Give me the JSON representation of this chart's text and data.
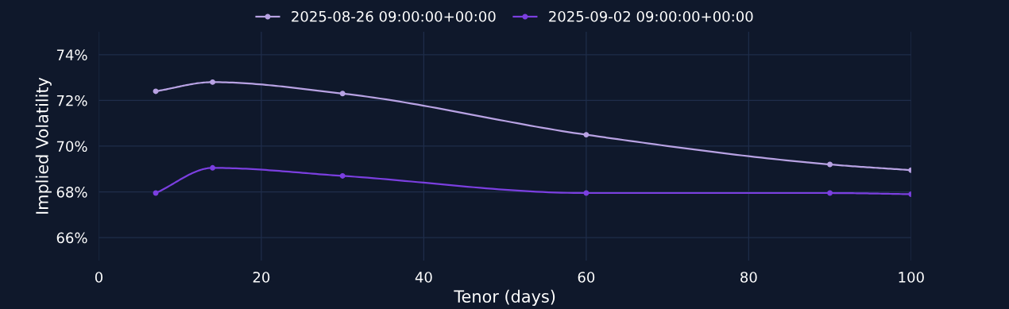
{
  "chart_data": {
    "type": "line",
    "xlabel": "Tenor (days)",
    "ylabel": "Implied Volatility",
    "series": [
      {
        "name": "2025-08-26 09:00:00+00:00",
        "color": "#b8a2e3",
        "x": [
          7,
          14,
          30,
          60,
          90,
          100
        ],
        "values": [
          72.4,
          72.8,
          72.3,
          70.5,
          69.2,
          68.95
        ]
      },
      {
        "name": "2025-09-02 09:00:00+00:00",
        "color": "#7b3fe0",
        "x": [
          7,
          14,
          30,
          60,
          90,
          100
        ],
        "values": [
          67.95,
          69.05,
          68.7,
          67.95,
          67.95,
          67.9
        ]
      }
    ],
    "xlim": [
      0,
      100
    ],
    "xticks": [
      0,
      20,
      40,
      60,
      80,
      100
    ],
    "ylim": [
      65,
      75
    ],
    "yticks": [
      {
        "value": 66,
        "label": "66%"
      },
      {
        "value": 68,
        "label": "68%"
      },
      {
        "value": 70,
        "label": "70%"
      },
      {
        "value": 72,
        "label": "72%"
      },
      {
        "value": 74,
        "label": "74%"
      }
    ],
    "grid": true,
    "legend": "top",
    "marker": "circle",
    "line_style": "solid"
  }
}
